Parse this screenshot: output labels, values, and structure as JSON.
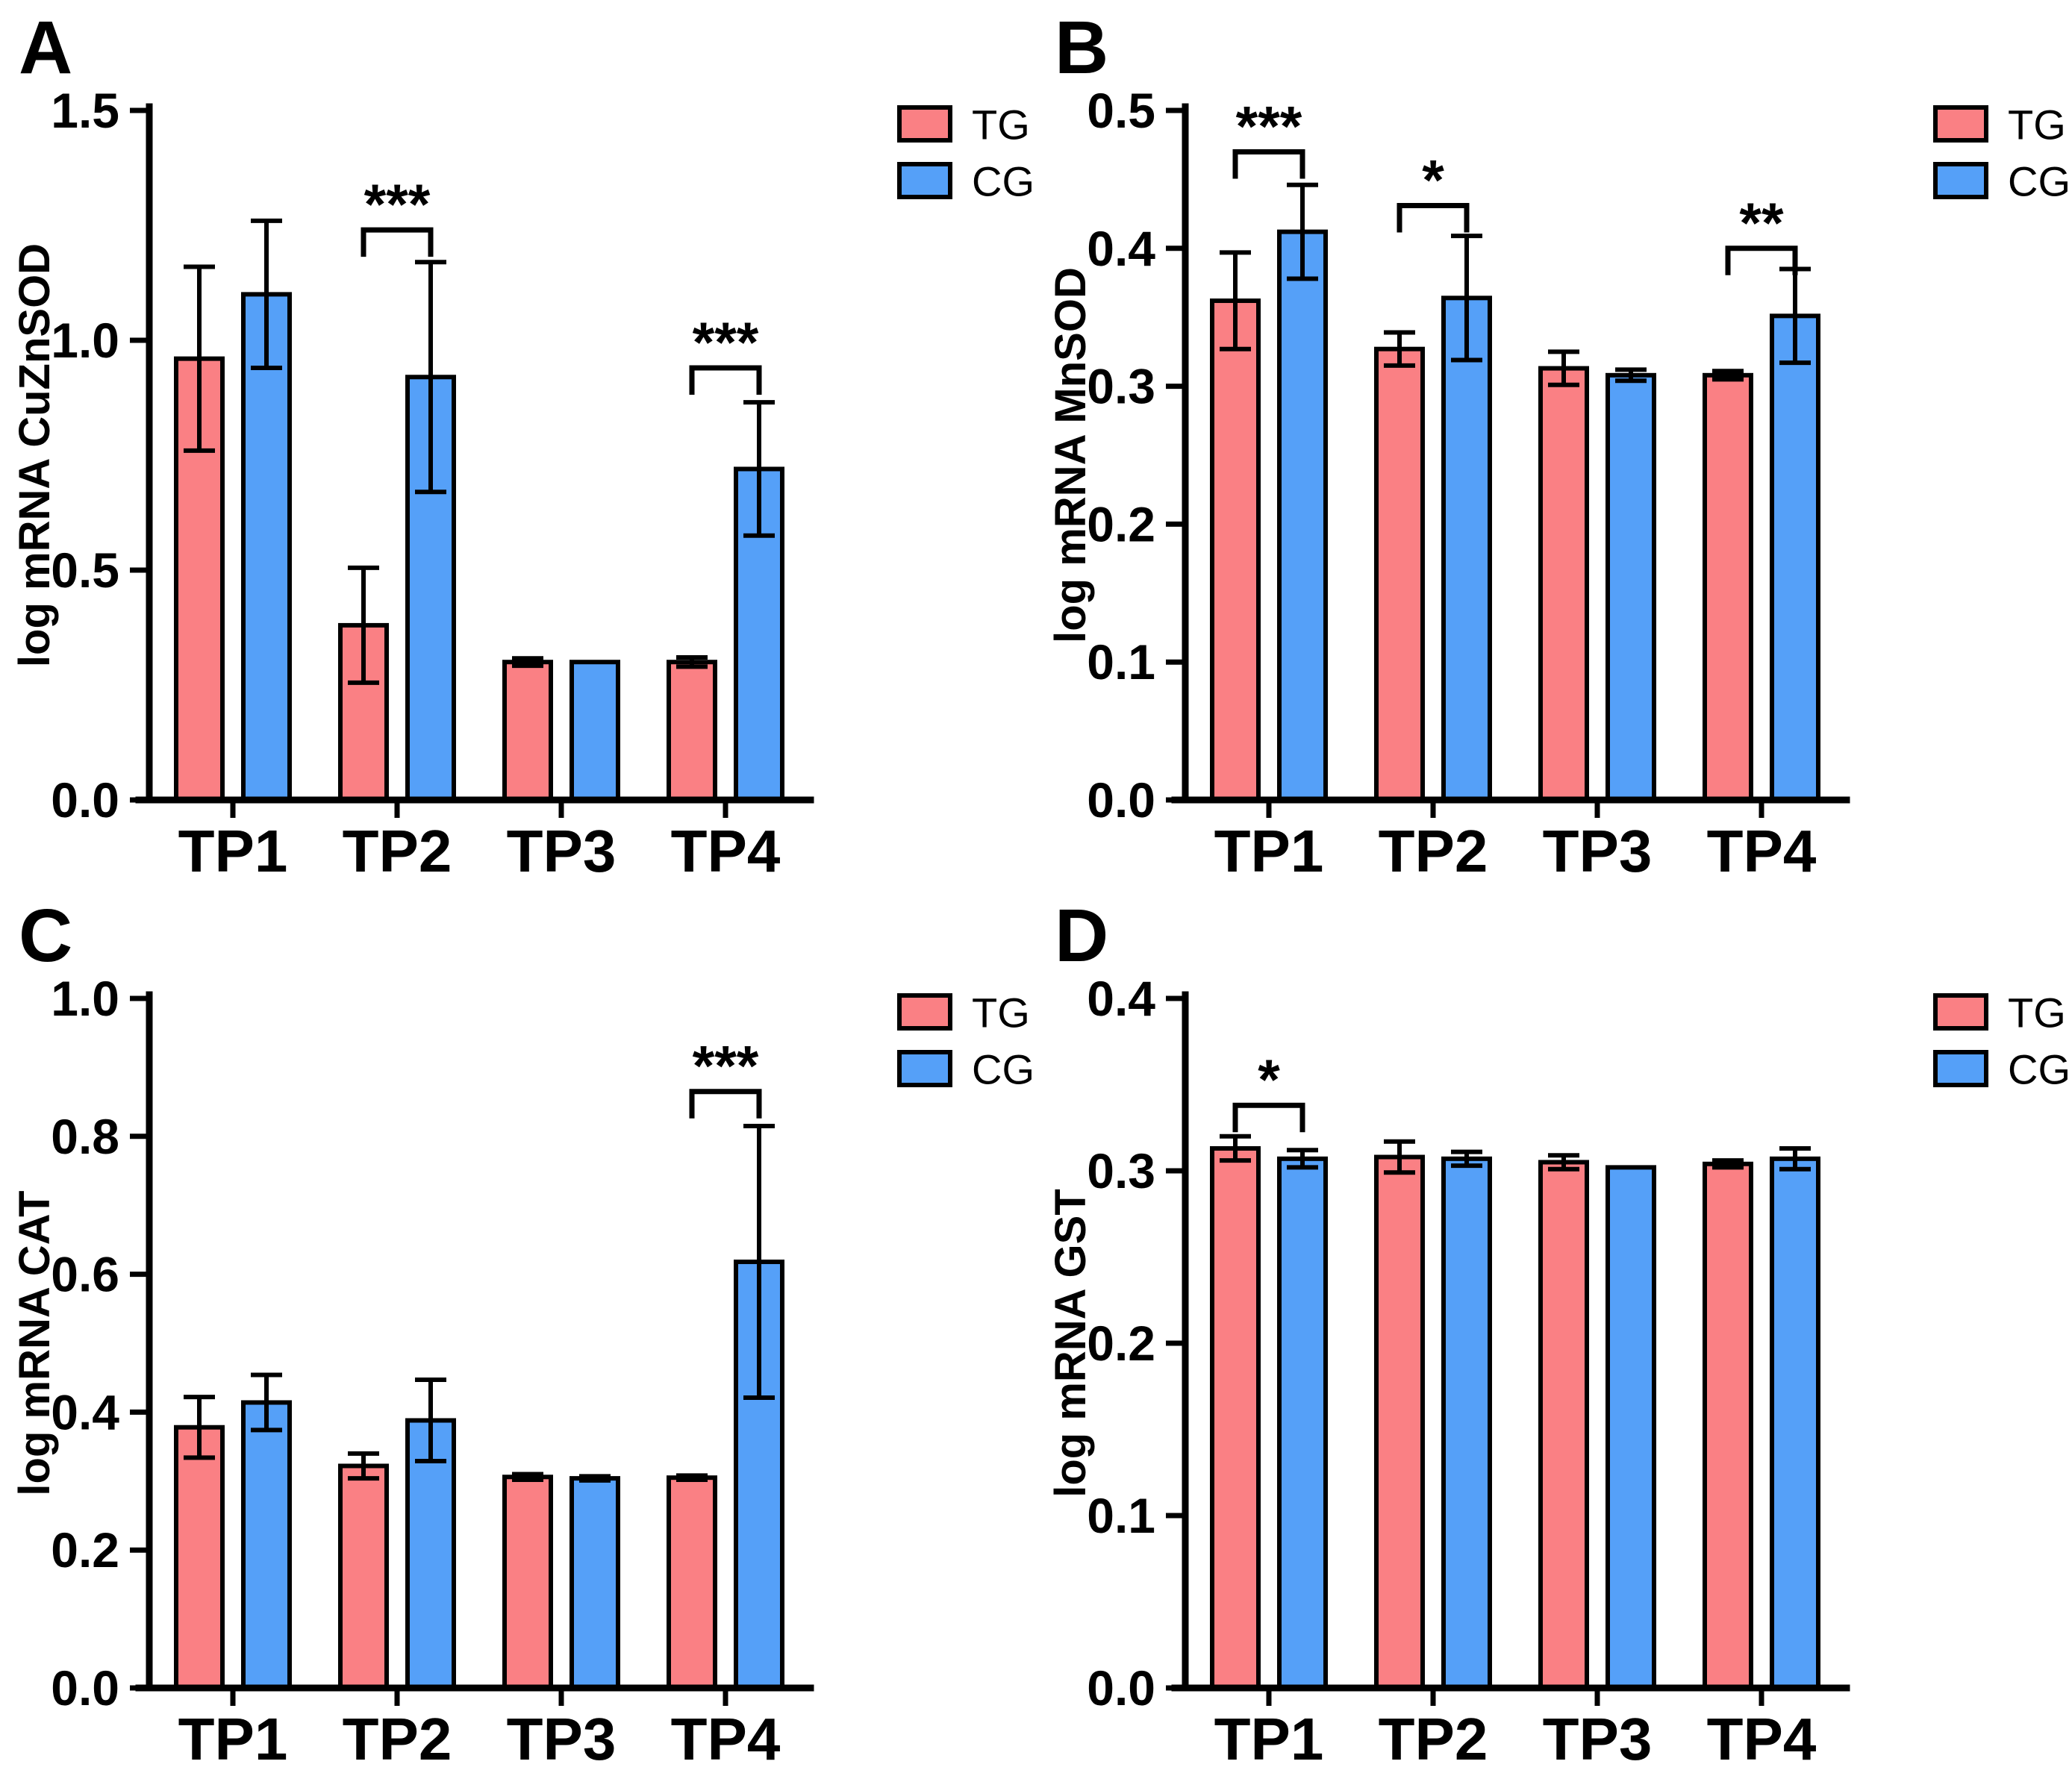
{
  "figure": {
    "background": "#ffffff",
    "colors": {
      "tg": "#FA8084",
      "cg": "#55A0F8",
      "outline": "#000000",
      "axis": "#000000",
      "text": "#000000"
    },
    "legend": {
      "items": [
        {
          "label": "TG"
        },
        {
          "label": "CG"
        }
      ],
      "position": "top-right"
    }
  },
  "chart_data": [
    {
      "type": "bar",
      "panel": "A",
      "title": "",
      "xlabel": "",
      "ylabel": "log mRNA CuZnSOD",
      "ylim": [
        0,
        1.5
      ],
      "yticks": [
        0,
        0.5,
        1.0,
        1.5
      ],
      "ytick_labels": [
        "0.0",
        "0.5",
        "1.0",
        "1.5"
      ],
      "categories": [
        "TP1",
        "TP2",
        "TP3",
        "TP4"
      ],
      "grid": false,
      "legend_entries": [
        "TG",
        "CG"
      ],
      "legend_position": "top-right",
      "series": [
        {
          "name": "TG",
          "values": [
            0.96,
            0.38,
            0.3,
            0.3
          ],
          "errors": [
            0.2,
            0.125,
            0.008,
            0.01
          ]
        },
        {
          "name": "CG",
          "values": [
            1.1,
            0.92,
            0.3,
            0.72
          ],
          "errors": [
            0.16,
            0.25,
            null,
            0.145
          ]
        }
      ],
      "significance": [
        {
          "category": "TP2",
          "stars": "***",
          "bracket_y": 1.24
        },
        {
          "category": "TP4",
          "stars": "***",
          "bracket_y": 0.94
        }
      ]
    },
    {
      "type": "bar",
      "panel": "B",
      "title": "",
      "xlabel": "",
      "ylabel": "log mRNA MnSOD",
      "ylim": [
        0,
        0.5
      ],
      "yticks": [
        0,
        0.1,
        0.2,
        0.3,
        0.4,
        0.5
      ],
      "ytick_labels": [
        "0.0",
        "0.1",
        "0.2",
        "0.3",
        "0.4",
        "0.5"
      ],
      "categories": [
        "TP1",
        "TP2",
        "TP3",
        "TP4"
      ],
      "grid": false,
      "legend_entries": [
        "TG",
        "CG"
      ],
      "legend_position": "top-right",
      "series": [
        {
          "name": "TG",
          "values": [
            0.362,
            0.327,
            0.313,
            0.308
          ],
          "errors": [
            0.035,
            0.012,
            0.012,
            0.003
          ]
        },
        {
          "name": "CG",
          "values": [
            0.412,
            0.364,
            0.308,
            0.351
          ],
          "errors": [
            0.034,
            0.045,
            0.004,
            0.034
          ]
        }
      ],
      "significance": [
        {
          "category": "TP1",
          "stars": "***",
          "bracket_y": 0.47
        },
        {
          "category": "TP2",
          "stars": "*",
          "bracket_y": 0.431
        },
        {
          "category": "TP4",
          "stars": "**",
          "bracket_y": 0.4
        }
      ]
    },
    {
      "type": "bar",
      "panel": "C",
      "title": "",
      "xlabel": "",
      "ylabel": "log mRNA CAT",
      "ylim": [
        0,
        1.0
      ],
      "yticks": [
        0,
        0.2,
        0.4,
        0.6,
        0.8,
        1.0
      ],
      "ytick_labels": [
        "0.0",
        "0.2",
        "0.4",
        "0.6",
        "0.8",
        "1.0"
      ],
      "categories": [
        "TP1",
        "TP2",
        "TP3",
        "TP4"
      ],
      "grid": false,
      "legend_entries": [
        "TG",
        "CG"
      ],
      "legend_position": "top-right",
      "series": [
        {
          "name": "TG",
          "values": [
            0.378,
            0.322,
            0.306,
            0.305
          ],
          "errors": [
            0.044,
            0.018,
            0.004,
            0.003
          ]
        },
        {
          "name": "CG",
          "values": [
            0.414,
            0.388,
            0.304,
            0.618
          ],
          "errors": [
            0.04,
            0.059,
            0.003,
            0.197
          ]
        }
      ],
      "significance": [
        {
          "category": "TP4",
          "stars": "***",
          "bracket_y": 0.865
        }
      ]
    },
    {
      "type": "bar",
      "panel": "D",
      "title": "",
      "xlabel": "",
      "ylabel": "log mRNA GST",
      "ylim": [
        0,
        0.4
      ],
      "yticks": [
        0,
        0.1,
        0.2,
        0.3,
        0.4
      ],
      "ytick_labels": [
        "0.0",
        "0.1",
        "0.2",
        "0.3",
        "0.4"
      ],
      "categories": [
        "TP1",
        "TP2",
        "TP3",
        "TP4"
      ],
      "grid": false,
      "legend_entries": [
        "TG",
        "CG"
      ],
      "legend_position": "top-right",
      "series": [
        {
          "name": "TG",
          "values": [
            0.313,
            0.308,
            0.305,
            0.304
          ],
          "errors": [
            0.007,
            0.009,
            0.004,
            0.002
          ]
        },
        {
          "name": "CG",
          "values": [
            0.307,
            0.307,
            0.302,
            0.307
          ],
          "errors": [
            0.005,
            0.004,
            null,
            0.006
          ]
        }
      ],
      "significance": [
        {
          "category": "TP1",
          "stars": "*",
          "bracket_y": 0.338
        }
      ]
    }
  ]
}
